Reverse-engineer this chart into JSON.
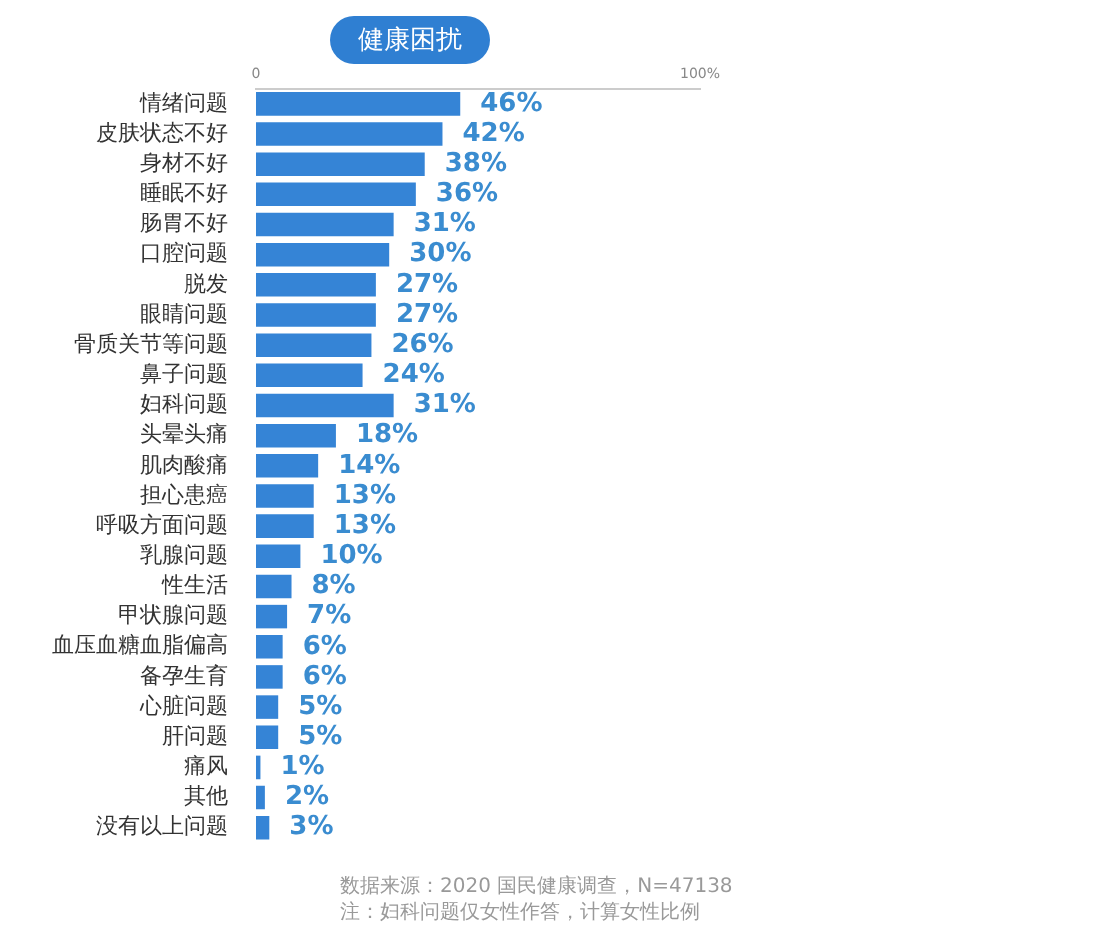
{
  "chart_data": {
    "type": "bar",
    "orientation": "horizontal",
    "title": "健康困扰",
    "categories": [
      "情绪问题",
      "皮肤状态不好",
      "身材不好",
      "睡眠不好",
      "肠胃不好",
      "口腔问题",
      "脱发",
      "眼睛问题",
      "骨质关节等问题",
      "鼻子问题",
      "妇科问题",
      "头晕头痛",
      "肌肉酸痛",
      "担心患癌",
      "呼吸方面问题",
      "乳腺问题",
      "性生活",
      "甲状腺问题",
      "血压血糖血脂偏高",
      "备孕生育",
      "心脏问题",
      "肝问题",
      "痛风",
      "其他",
      "没有以上问题"
    ],
    "values": [
      46,
      42,
      38,
      36,
      31,
      30,
      27,
      27,
      26,
      24,
      31,
      18,
      14,
      13,
      13,
      10,
      8,
      7,
      6,
      6,
      5,
      5,
      1,
      2,
      3
    ],
    "value_labels": [
      "46%",
      "42%",
      "38%",
      "36%",
      "31%",
      "30%",
      "27%",
      "27%",
      "26%",
      "24%",
      "31%",
      "18%",
      "14%",
      "13%",
      "13%",
      "10%",
      "8%",
      "7%",
      "6%",
      "6%",
      "5%",
      "5%",
      "1%",
      "2%",
      "3%"
    ],
    "color": "#3584d6",
    "xlim": [
      0,
      100
    ],
    "xticks": [
      {
        "value": 0,
        "label": "0"
      },
      {
        "value": 100,
        "label": "100%"
      }
    ],
    "grid": false,
    "legend": false,
    "annotations": [
      "数据来源：2020 国民健康调查，N=47138",
      "注：妇科问题仅女性作答，计算女性比例"
    ]
  }
}
